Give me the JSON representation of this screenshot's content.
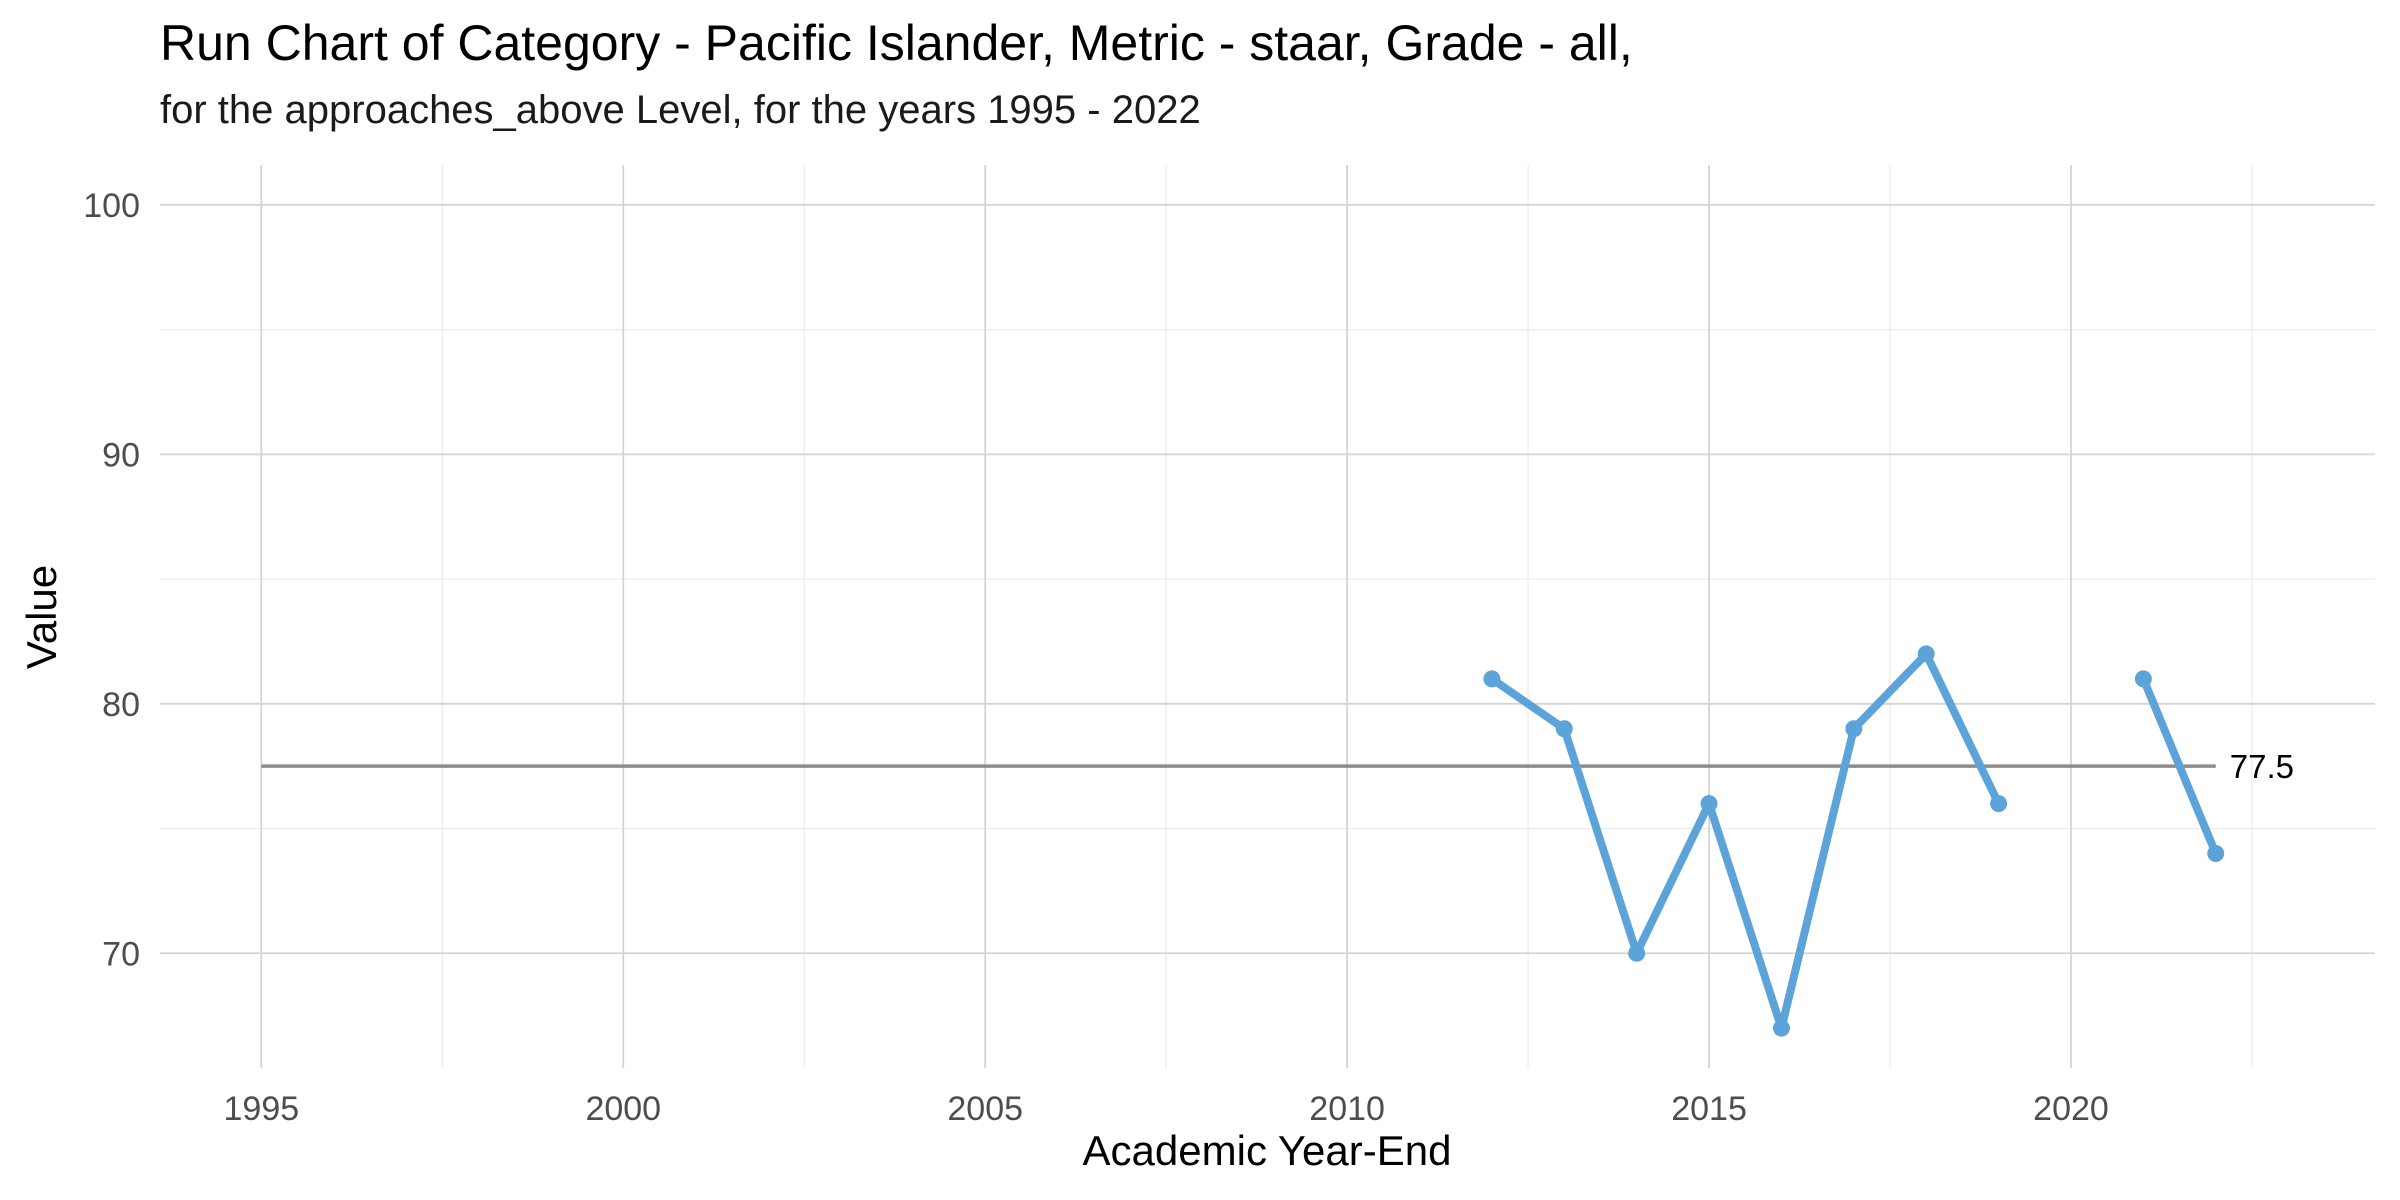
{
  "chart_data": {
    "type": "line",
    "title": "Run Chart of Category - Pacific Islander, Metric - staar, Grade - all,",
    "subtitle": "for the approaches_above Level, for the years 1995 - 2022",
    "xlabel": "Academic Year-End",
    "ylabel": "Value",
    "xlim": [
      1993.6,
      2024.2
    ],
    "ylim": [
      65.4,
      101.6
    ],
    "x_ticks": [
      1995,
      2000,
      2005,
      2010,
      2015,
      2020
    ],
    "x_tick_labels": [
      "1995",
      "2000",
      "2005",
      "2010",
      "2015",
      "2020"
    ],
    "y_ticks": [
      70,
      80,
      90,
      100
    ],
    "y_tick_labels": [
      "70",
      "80",
      "90",
      "100"
    ],
    "grid": true,
    "series": [
      {
        "color": "#5ba3d9",
        "segments": [
          [
            {
              "x": 2012,
              "y": 81
            },
            {
              "x": 2013,
              "y": 79
            },
            {
              "x": 2014,
              "y": 70
            },
            {
              "x": 2015,
              "y": 76
            },
            {
              "x": 2016,
              "y": 67
            },
            {
              "x": 2017,
              "y": 79
            },
            {
              "x": 2018,
              "y": 82
            },
            {
              "x": 2019,
              "y": 76
            }
          ],
          [
            {
              "x": 2021,
              "y": 81
            },
            {
              "x": 2022,
              "y": 74
            }
          ]
        ]
      }
    ],
    "reference_line": {
      "value": 77.5,
      "label": "77.5",
      "x_from": 1995,
      "x_to": 2022,
      "color": "#8c8c8c"
    }
  }
}
